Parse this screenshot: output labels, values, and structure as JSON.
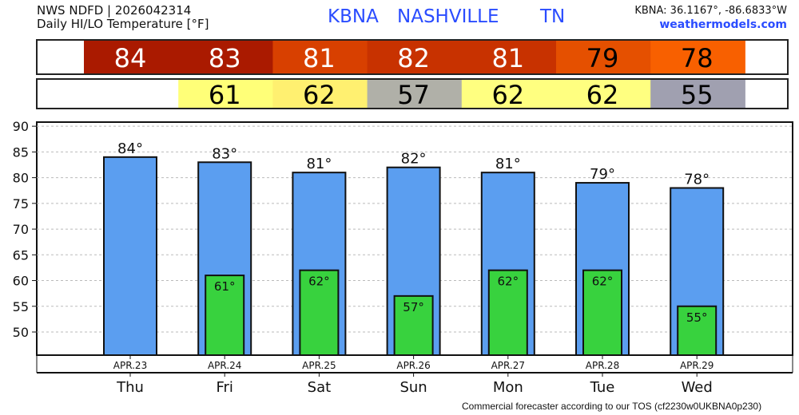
{
  "header": {
    "line1": "NWS NDFD | 2026042314",
    "line2": "Daily HI/LO Temperature [°F]",
    "station": "KBNA",
    "city": "NASHVILLE",
    "state": "TN",
    "coords": "KBNA: 36.1167°, -86.6833°W",
    "site": "weathermodels.com"
  },
  "footer": "Commercial forecaster according to our TOS (cf2230w0UKBNA0p230)",
  "colors": {
    "high_bar": "#5b9ef0",
    "low_bar": "#38d23e",
    "title_blue": "#2a4cff",
    "high_cells": [
      "#aa1a00",
      "#aa1a00",
      "#d84000",
      "#c83200",
      "#c83200",
      "#e55000",
      "#f86000"
    ],
    "high_text": [
      "#ffffff",
      "#ffffff",
      "#ffffff",
      "#ffffff",
      "#ffffff",
      "#000000",
      "#000000"
    ],
    "low_cells": [
      null,
      "#ffff78",
      "#fff070",
      "#b0b0a8",
      "#ffff80",
      "#ffff80",
      "#a0a0b0"
    ]
  },
  "chart_data": {
    "type": "bar",
    "title": "Daily HI/LO Temperature [°F]",
    "categories": [
      "Thu",
      "Fri",
      "Sat",
      "Sun",
      "Mon",
      "Tue",
      "Wed"
    ],
    "dates": [
      "APR.23",
      "APR.24",
      "APR.25",
      "APR.26",
      "APR.27",
      "APR.28",
      "APR.29"
    ],
    "series": [
      {
        "name": "High",
        "values": [
          84,
          83,
          81,
          82,
          81,
          79,
          78
        ],
        "labels": [
          "84°",
          "83°",
          "81°",
          "82°",
          "81°",
          "79°",
          "78°"
        ]
      },
      {
        "name": "Low",
        "values": [
          null,
          61,
          62,
          57,
          62,
          62,
          55
        ],
        "labels": [
          null,
          "61°",
          "62°",
          "57°",
          "62°",
          "62°",
          "55°"
        ]
      }
    ],
    "high_row": [
      "84",
      "83",
      "81",
      "82",
      "81",
      "79",
      "78"
    ],
    "low_row": [
      null,
      "61",
      "62",
      "57",
      "62",
      "62",
      "55"
    ],
    "yticks": [
      "90",
      "85",
      "80",
      "75",
      "70",
      "65",
      "60",
      "55",
      "50"
    ],
    "ylim": [
      45.5,
      90.8
    ],
    "grid": true
  }
}
